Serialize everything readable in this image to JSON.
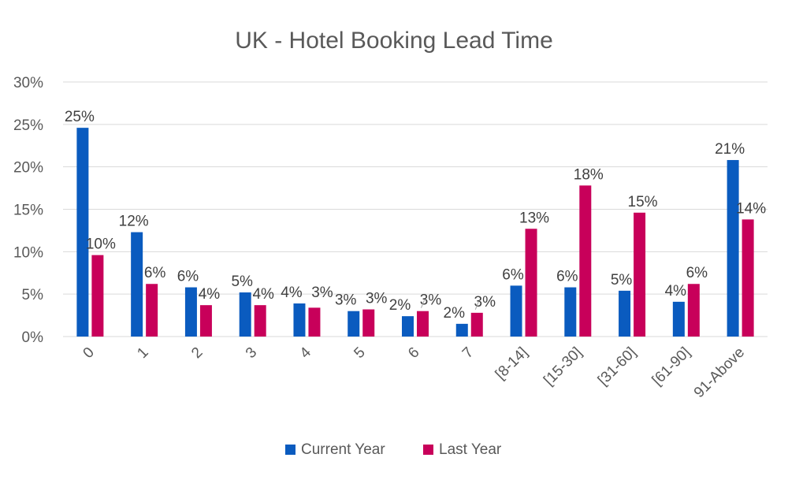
{
  "chart_data": {
    "type": "bar",
    "title": "UK - Hotel Booking Lead Time",
    "xlabel": "",
    "ylabel": "",
    "categories": [
      "0",
      "1",
      "2",
      "3",
      "4",
      "5",
      "6",
      "7",
      "[8-14]",
      "[15-30]",
      "[31-60]",
      "[61-90]",
      "91-Above"
    ],
    "ylim": [
      0,
      30
    ],
    "yticks": [
      0,
      5,
      10,
      15,
      20,
      25,
      30
    ],
    "ytick_labels": [
      "0%",
      "5%",
      "10%",
      "15%",
      "20%",
      "25%",
      "30%"
    ],
    "grid": true,
    "legend_position": "bottom",
    "series": [
      {
        "name": "Current Year",
        "color": "#0a5bbf",
        "values": [
          24.6,
          12.3,
          5.8,
          5.2,
          3.9,
          3.0,
          2.4,
          1.5,
          6.0,
          5.8,
          5.4,
          4.1,
          20.8
        ],
        "labels": [
          "25%",
          "12%",
          "6%",
          "5%",
          "4%",
          "3%",
          "2%",
          "2%",
          "6%",
          "6%",
          "5%",
          "4%",
          "21%"
        ]
      },
      {
        "name": "Last Year",
        "color": "#c8005a",
        "values": [
          9.6,
          6.2,
          3.7,
          3.7,
          3.4,
          3.2,
          3.0,
          2.8,
          12.7,
          17.8,
          14.6,
          6.2,
          13.8
        ],
        "labels": [
          "10%",
          "6%",
          "4%",
          "4%",
          "3%",
          "3%",
          "3%",
          "3%",
          "13%",
          "18%",
          "15%",
          "6%",
          "14%"
        ]
      }
    ]
  }
}
